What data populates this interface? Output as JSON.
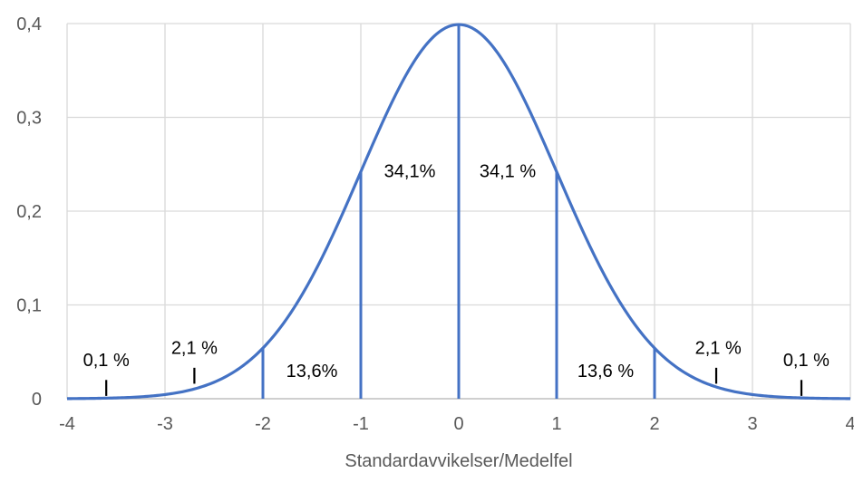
{
  "chart_data": {
    "type": "line",
    "title": "",
    "xlabel": "Standardavvikelser/Medelfel",
    "ylabel": "",
    "xlim": [
      -4,
      4
    ],
    "ylim": [
      0,
      0.4
    ],
    "grid": true,
    "x_ticks": [
      "-4",
      "-3",
      "-2",
      "-1",
      "0",
      "1",
      "2",
      "3",
      "4"
    ],
    "y_ticks": [
      "0",
      "0,1",
      "0,2",
      "0,3",
      "0,4"
    ],
    "series": [
      {
        "curve": "standard normal density",
        "color": "#4472C4",
        "x": [
          -4,
          -3.5,
          -3,
          -2.5,
          -2,
          -1.5,
          -1,
          -0.5,
          0,
          0.5,
          1,
          1.5,
          2,
          2.5,
          3,
          3.5,
          4
        ],
        "values": [
          0.0001,
          0.0009,
          0.0044,
          0.0175,
          0.054,
          0.1295,
          0.242,
          0.3521,
          0.3989,
          0.3521,
          0.242,
          0.1295,
          0.054,
          0.0175,
          0.0044,
          0.0009,
          0.0001
        ]
      }
    ],
    "vertical_lines_x": [
      -2,
      -1,
      0,
      1,
      2
    ],
    "annotations": [
      {
        "text": "0,1 %",
        "x": -3.6,
        "y": 0.0415
      },
      {
        "text": "2,1 %",
        "x": -2.7,
        "y": 0.0545
      },
      {
        "text": "13,6%",
        "x": -1.5,
        "y": 0.03
      },
      {
        "text": "34,1%",
        "x": -0.5,
        "y": 0.243
      },
      {
        "text": "34,1 %",
        "x": 0.5,
        "y": 0.243
      },
      {
        "text": "13,6 %",
        "x": 1.5,
        "y": 0.03
      },
      {
        "text": "2,1 %",
        "x": 2.65,
        "y": 0.0545
      },
      {
        "text": "0,1 %",
        "x": 3.55,
        "y": 0.0415
      }
    ],
    "markers": [
      {
        "x": -3.6,
        "y0": 0.003,
        "y1": 0.02
      },
      {
        "x": -2.7,
        "y0": 0.016,
        "y1": 0.033
      },
      {
        "x": 2.63,
        "y0": 0.016,
        "y1": 0.033
      },
      {
        "x": 3.5,
        "y0": 0.003,
        "y1": 0.02
      }
    ]
  }
}
